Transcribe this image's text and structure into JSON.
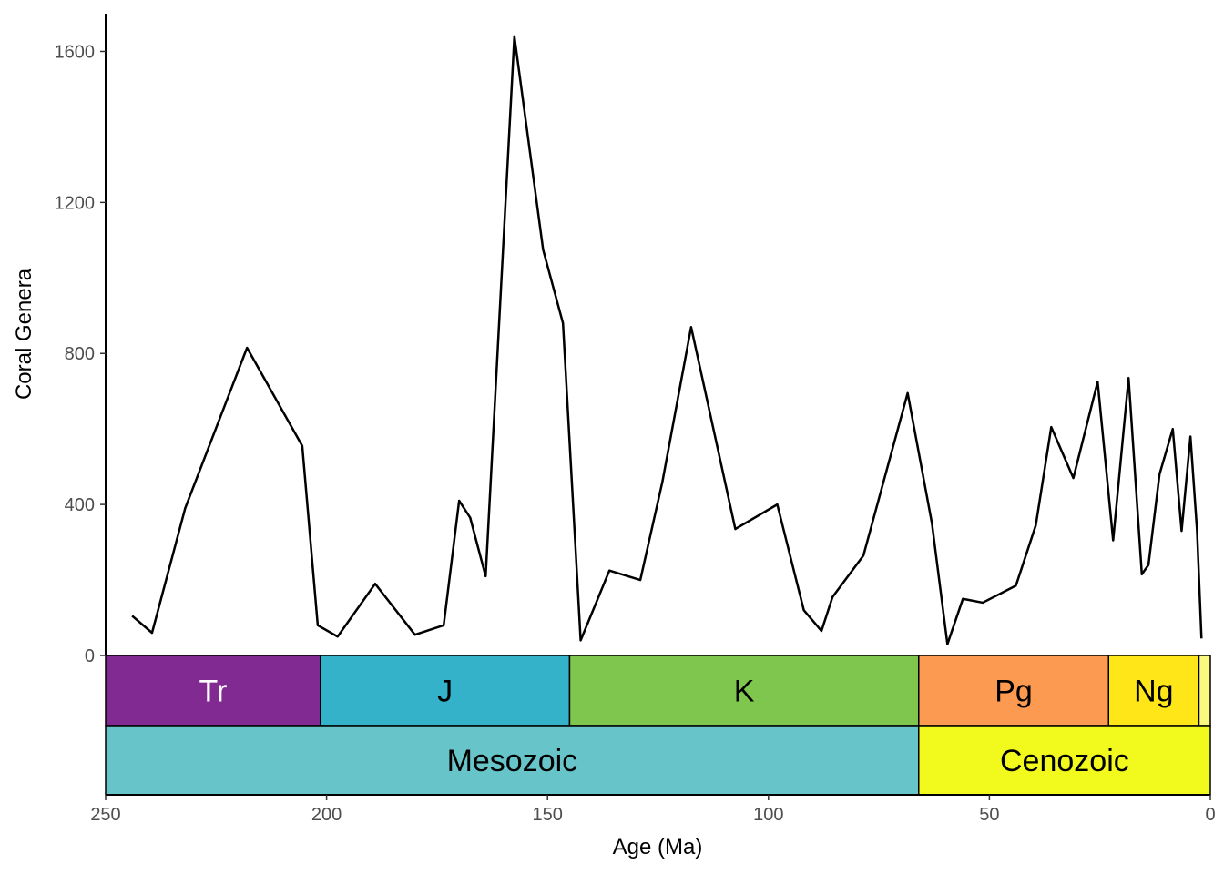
{
  "chart_data": {
    "type": "line",
    "xlabel": "Age (Ma)",
    "ylabel": "Coral Genera",
    "xlim": [
      250,
      0
    ],
    "ylim": [
      0,
      1700
    ],
    "x_ticks": [
      250,
      200,
      150,
      100,
      50,
      0
    ],
    "x_tick_labels": [
      "250",
      "200",
      "150",
      "100",
      "50",
      "0"
    ],
    "y_ticks": [
      0,
      400,
      800,
      1200,
      1600
    ],
    "y_tick_labels": [
      "0",
      "400",
      "800",
      "1200",
      "1600"
    ],
    "grid": false,
    "line_color": "#000000",
    "series": [
      {
        "x": [
          244,
          239.5,
          232,
          218,
          205.5,
          202,
          197.5,
          189,
          180,
          173.5,
          170,
          167.5,
          164,
          157.5,
          151,
          146.5,
          142.5,
          136,
          129,
          124,
          117.5,
          107.5,
          98,
          92,
          88,
          85.5,
          78.5,
          68.5,
          63,
          59.5,
          56,
          51.5,
          44,
          39.5,
          36,
          31,
          25.5,
          22,
          18.5,
          15.5,
          14,
          11.5,
          8.5,
          6.5,
          4.5,
          3,
          2
        ],
        "y": [
          105,
          60,
          390,
          815,
          555,
          80,
          50,
          190,
          55,
          80,
          410,
          365,
          210,
          1640,
          1075,
          880,
          40,
          225,
          200,
          460,
          870,
          335,
          400,
          120,
          65,
          155,
          265,
          695,
          350,
          30,
          150,
          140,
          185,
          345,
          605,
          470,
          725,
          305,
          735,
          215,
          240,
          480,
          600,
          330,
          580,
          330,
          45
        ]
      }
    ],
    "periods": [
      {
        "label": "Tr",
        "start": 251.9,
        "end": 201.4,
        "color": "#812B92",
        "text_color": "#ffffff"
      },
      {
        "label": "J",
        "start": 201.4,
        "end": 145,
        "color": "#34B2C9",
        "text_color": "#000000"
      },
      {
        "label": "K",
        "start": 145,
        "end": 66,
        "color": "#7FC64E",
        "text_color": "#000000"
      },
      {
        "label": "Pg",
        "start": 66,
        "end": 23.03,
        "color": "#FD9A52",
        "text_color": "#000000"
      },
      {
        "label": "Ng",
        "start": 23.03,
        "end": 2.58,
        "color": "#FFE619",
        "text_color": "#000000"
      },
      {
        "label": "",
        "start": 2.58,
        "end": 0,
        "color": "#F9F97F",
        "text_color": "#000000"
      }
    ],
    "eras": [
      {
        "label": "Mesozoic",
        "start": 251.9,
        "end": 66,
        "color": "#67C5CA"
      },
      {
        "label": "Cenozoic",
        "start": 66,
        "end": 0,
        "color": "#F2F91D"
      }
    ]
  }
}
